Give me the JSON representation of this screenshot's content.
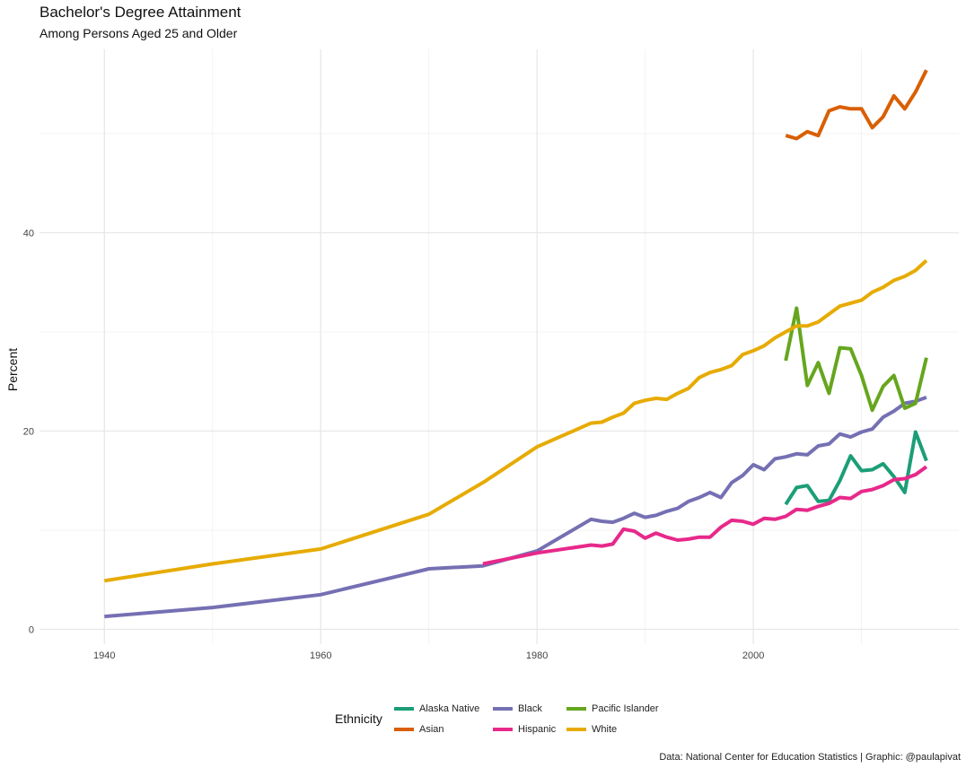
{
  "chart_data": {
    "type": "line",
    "title": "Bachelor's Degree Attainment",
    "subtitle": "Among Persons Aged 25 and Older",
    "xlabel": "",
    "ylabel": "Percent",
    "xlim": [
      1934,
      2019
    ],
    "ylim": [
      -1.5,
      58.5
    ],
    "x_ticks": [
      1940,
      1960,
      1980,
      2000
    ],
    "y_ticks": [
      0,
      20,
      40
    ],
    "grid": true,
    "legend": {
      "title": "Ethnicity",
      "position": "bottom"
    },
    "caption": "Data: National Center for Education Statistics | Graphic: @paulapivat",
    "series": [
      {
        "name": "Alaska Native",
        "color": "#1B9E77",
        "points": [
          [
            2003,
            12.6
          ],
          [
            2004,
            14.3
          ],
          [
            2005,
            14.5
          ],
          [
            2006,
            12.9
          ],
          [
            2007,
            13.0
          ],
          [
            2008,
            15.0
          ],
          [
            2009,
            17.5
          ],
          [
            2010,
            16.0
          ],
          [
            2011,
            16.1
          ],
          [
            2012,
            16.7
          ],
          [
            2013,
            15.4
          ],
          [
            2014,
            13.8
          ],
          [
            2015,
            19.9
          ],
          [
            2016,
            17.0
          ]
        ]
      },
      {
        "name": "Asian",
        "color": "#D95F02",
        "points": [
          [
            2003,
            49.8
          ],
          [
            2004,
            49.5
          ],
          [
            2005,
            50.2
          ],
          [
            2006,
            49.8
          ],
          [
            2007,
            52.3
          ],
          [
            2008,
            52.7
          ],
          [
            2009,
            52.5
          ],
          [
            2010,
            52.5
          ],
          [
            2011,
            50.6
          ],
          [
            2012,
            51.7
          ],
          [
            2013,
            53.8
          ],
          [
            2014,
            52.5
          ],
          [
            2015,
            54.2
          ],
          [
            2016,
            56.4
          ]
        ]
      },
      {
        "name": "Black",
        "color": "#7570B3",
        "points": [
          [
            1940,
            1.3
          ],
          [
            1950,
            2.2
          ],
          [
            1960,
            3.5
          ],
          [
            1970,
            6.1
          ],
          [
            1975,
            6.4
          ],
          [
            1980,
            7.9
          ],
          [
            1985,
            11.1
          ],
          [
            1986,
            10.9
          ],
          [
            1987,
            10.8
          ],
          [
            1988,
            11.2
          ],
          [
            1989,
            11.7
          ],
          [
            1990,
            11.3
          ],
          [
            1991,
            11.5
          ],
          [
            1992,
            11.9
          ],
          [
            1993,
            12.2
          ],
          [
            1994,
            12.9
          ],
          [
            1995,
            13.3
          ],
          [
            1996,
            13.8
          ],
          [
            1997,
            13.3
          ],
          [
            1998,
            14.8
          ],
          [
            1999,
            15.5
          ],
          [
            2000,
            16.6
          ],
          [
            2001,
            16.1
          ],
          [
            2002,
            17.2
          ],
          [
            2003,
            17.4
          ],
          [
            2004,
            17.7
          ],
          [
            2005,
            17.6
          ],
          [
            2006,
            18.5
          ],
          [
            2007,
            18.7
          ],
          [
            2008,
            19.7
          ],
          [
            2009,
            19.4
          ],
          [
            2010,
            19.9
          ],
          [
            2011,
            20.2
          ],
          [
            2012,
            21.4
          ],
          [
            2013,
            22.0
          ],
          [
            2014,
            22.8
          ],
          [
            2015,
            23.0
          ],
          [
            2016,
            23.4
          ]
        ]
      },
      {
        "name": "Hispanic",
        "color": "#E7298A",
        "points": [
          [
            1975,
            6.6
          ],
          [
            1980,
            7.7
          ],
          [
            1985,
            8.5
          ],
          [
            1986,
            8.4
          ],
          [
            1987,
            8.6
          ],
          [
            1988,
            10.1
          ],
          [
            1989,
            9.9
          ],
          [
            1990,
            9.2
          ],
          [
            1991,
            9.7
          ],
          [
            1992,
            9.3
          ],
          [
            1993,
            9.0
          ],
          [
            1994,
            9.1
          ],
          [
            1995,
            9.3
          ],
          [
            1996,
            9.3
          ],
          [
            1997,
            10.3
          ],
          [
            1998,
            11.0
          ],
          [
            1999,
            10.9
          ],
          [
            2000,
            10.6
          ],
          [
            2001,
            11.2
          ],
          [
            2002,
            11.1
          ],
          [
            2003,
            11.4
          ],
          [
            2004,
            12.1
          ],
          [
            2005,
            12.0
          ],
          [
            2006,
            12.4
          ],
          [
            2007,
            12.7
          ],
          [
            2008,
            13.3
          ],
          [
            2009,
            13.2
          ],
          [
            2010,
            13.9
          ],
          [
            2011,
            14.1
          ],
          [
            2012,
            14.5
          ],
          [
            2013,
            15.1
          ],
          [
            2014,
            15.2
          ],
          [
            2015,
            15.6
          ],
          [
            2016,
            16.4
          ]
        ]
      },
      {
        "name": "Pacific Islander",
        "color": "#66A61E",
        "points": [
          [
            2003,
            27.1
          ],
          [
            2004,
            32.4
          ],
          [
            2005,
            24.6
          ],
          [
            2006,
            26.9
          ],
          [
            2007,
            23.8
          ],
          [
            2008,
            28.4
          ],
          [
            2009,
            28.3
          ],
          [
            2010,
            25.6
          ],
          [
            2011,
            22.1
          ],
          [
            2012,
            24.5
          ],
          [
            2013,
            25.6
          ],
          [
            2014,
            22.3
          ],
          [
            2015,
            22.8
          ],
          [
            2016,
            27.4
          ]
        ]
      },
      {
        "name": "White",
        "color": "#E6AB02",
        "points": [
          [
            1940,
            4.9
          ],
          [
            1950,
            6.6
          ],
          [
            1960,
            8.1
          ],
          [
            1970,
            11.6
          ],
          [
            1975,
            14.8
          ],
          [
            1980,
            18.4
          ],
          [
            1985,
            20.8
          ],
          [
            1986,
            20.9
          ],
          [
            1987,
            21.4
          ],
          [
            1988,
            21.8
          ],
          [
            1989,
            22.8
          ],
          [
            1990,
            23.1
          ],
          [
            1991,
            23.3
          ],
          [
            1992,
            23.2
          ],
          [
            1993,
            23.8
          ],
          [
            1994,
            24.3
          ],
          [
            1995,
            25.4
          ],
          [
            1996,
            25.9
          ],
          [
            1997,
            26.2
          ],
          [
            1998,
            26.6
          ],
          [
            1999,
            27.7
          ],
          [
            2000,
            28.1
          ],
          [
            2001,
            28.6
          ],
          [
            2002,
            29.4
          ],
          [
            2003,
            30.0
          ],
          [
            2004,
            30.6
          ],
          [
            2005,
            30.6
          ],
          [
            2006,
            31.0
          ],
          [
            2007,
            31.8
          ],
          [
            2008,
            32.6
          ],
          [
            2009,
            32.9
          ],
          [
            2010,
            33.2
          ],
          [
            2011,
            34.0
          ],
          [
            2012,
            34.5
          ],
          [
            2013,
            35.2
          ],
          [
            2014,
            35.6
          ],
          [
            2015,
            36.2
          ],
          [
            2016,
            37.2
          ]
        ]
      }
    ]
  }
}
